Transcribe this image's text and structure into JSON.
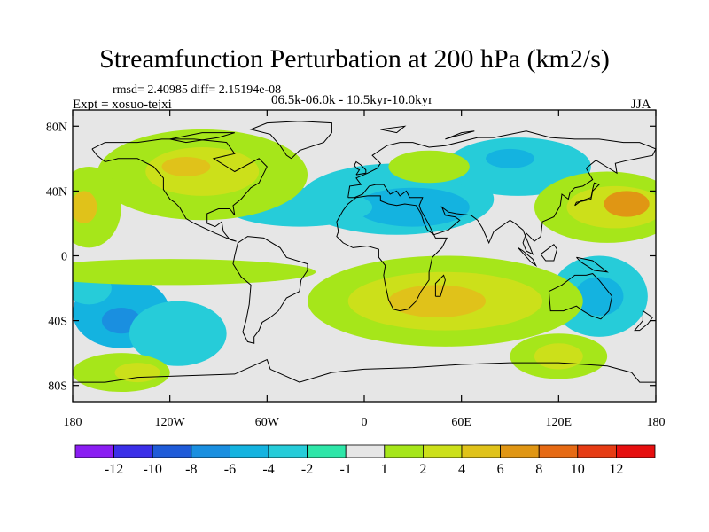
{
  "title": "Streamfunction Perturbation at 200 hPa (km2/s)",
  "stats": "rmsd= 2.40985 diff= 2.15194e-08",
  "subtitle": "06.5k-06.0k - 10.5kyr-10.0kyr",
  "expt": "Expt = xosuo-tejxi",
  "season": "JJA",
  "map": {
    "lon_range": [
      -180,
      180
    ],
    "lat_range": [
      -90,
      90
    ],
    "lat_ticks": [
      {
        "value": 80,
        "label": "80N"
      },
      {
        "value": 40,
        "label": "40N"
      },
      {
        "value": 0,
        "label": "0"
      },
      {
        "value": -40,
        "label": "40S"
      },
      {
        "value": -80,
        "label": "80S"
      }
    ],
    "lon_ticks": [
      {
        "value": -180,
        "label": "180"
      },
      {
        "value": -120,
        "label": "120W"
      },
      {
        "value": -60,
        "label": "60W"
      },
      {
        "value": 0,
        "label": "0"
      },
      {
        "value": 60,
        "label": "60E"
      },
      {
        "value": 120,
        "label": "120E"
      },
      {
        "value": 180,
        "label": "180"
      }
    ],
    "background_color": "#e6e6e6",
    "coast_color": "#000000"
  },
  "colorbar": {
    "labels": [
      "-12",
      "-10",
      "-8",
      "-6",
      "-4",
      "-2",
      "-1",
      "1",
      "2",
      "4",
      "6",
      "8",
      "10",
      "12"
    ],
    "colors": [
      "#8a1df2",
      "#3b2fe8",
      "#1f5bd8",
      "#1a8fe0",
      "#14b3e0",
      "#26ccd9",
      "#2ee6a8",
      "#e6e6e6",
      "#a6e61a",
      "#cce01a",
      "#e0c21a",
      "#e09614",
      "#e66a14",
      "#e63c14",
      "#e60f0f"
    ]
  },
  "contours": [
    {
      "level": "-4",
      "color": "#14b3e0",
      "cx": -150,
      "cy": -35,
      "rx": 30,
      "ry": 22
    },
    {
      "level": "-6",
      "color": "#1a8fe0",
      "cx": -150,
      "cy": -40,
      "rx": 12,
      "ry": 8
    },
    {
      "level": "-2",
      "color": "#26ccd9",
      "cx": -115,
      "cy": -48,
      "rx": 30,
      "ry": 20
    },
    {
      "level": "-2",
      "color": "#26ccd9",
      "cx": -170,
      "cy": -20,
      "rx": 14,
      "ry": 10
    },
    {
      "level": "-2",
      "color": "#26ccd9",
      "cx": 20,
      "cy": 35,
      "rx": 60,
      "ry": 22
    },
    {
      "level": "-4",
      "color": "#14b3e0",
      "cx": 30,
      "cy": 30,
      "rx": 35,
      "ry": 12
    },
    {
      "level": "-2",
      "color": "#26ccd9",
      "cx": -40,
      "cy": 30,
      "rx": 45,
      "ry": 12
    },
    {
      "level": "-2",
      "color": "#26ccd9",
      "cx": 95,
      "cy": 55,
      "rx": 45,
      "ry": 18
    },
    {
      "level": "-4",
      "color": "#14b3e0",
      "cx": 90,
      "cy": 60,
      "rx": 15,
      "ry": 6
    },
    {
      "level": "-2",
      "color": "#26ccd9",
      "cx": 145,
      "cy": -25,
      "rx": 30,
      "ry": 25
    },
    {
      "level": "-4",
      "color": "#14b3e0",
      "cx": 145,
      "cy": -25,
      "rx": 15,
      "ry": 12
    },
    {
      "level": "2",
      "color": "#a6e61a",
      "cx": -100,
      "cy": 50,
      "rx": 65,
      "ry": 28
    },
    {
      "level": "4",
      "color": "#cce01a",
      "cx": -100,
      "cy": 52,
      "rx": 35,
      "ry": 15
    },
    {
      "level": "6",
      "color": "#e0c21a",
      "cx": -110,
      "cy": 55,
      "rx": 15,
      "ry": 6
    },
    {
      "level": "2",
      "color": "#a6e61a",
      "cx": -170,
      "cy": 30,
      "rx": 20,
      "ry": 25
    },
    {
      "level": "6",
      "color": "#e0c21a",
      "cx": -173,
      "cy": 30,
      "rx": 8,
      "ry": 10
    },
    {
      "level": "2",
      "color": "#a6e61a",
      "cx": 50,
      "cy": -28,
      "rx": 85,
      "ry": 28
    },
    {
      "level": "4",
      "color": "#cce01a",
      "cx": 50,
      "cy": -28,
      "rx": 60,
      "ry": 18
    },
    {
      "level": "6",
      "color": "#e0c21a",
      "cx": 45,
      "cy": -28,
      "rx": 30,
      "ry": 10
    },
    {
      "level": "2",
      "color": "#a6e61a",
      "cx": 150,
      "cy": 30,
      "rx": 45,
      "ry": 22
    },
    {
      "level": "4",
      "color": "#cce01a",
      "cx": 155,
      "cy": 30,
      "rx": 30,
      "ry": 13
    },
    {
      "level": "6",
      "color": "#e09614",
      "cx": 162,
      "cy": 32,
      "rx": 14,
      "ry": 8
    },
    {
      "level": "2",
      "color": "#a6e61a",
      "cx": 120,
      "cy": -62,
      "rx": 30,
      "ry": 14
    },
    {
      "level": "4",
      "color": "#cce01a",
      "cx": 120,
      "cy": -62,
      "rx": 15,
      "ry": 8
    },
    {
      "level": "2",
      "color": "#a6e61a",
      "cx": -120,
      "cy": -10,
      "rx": 90,
      "ry": 8
    },
    {
      "level": "2",
      "color": "#a6e61a",
      "cx": -150,
      "cy": -72,
      "rx": 30,
      "ry": 12
    },
    {
      "level": "4",
      "color": "#cce01a",
      "cx": -140,
      "cy": -72,
      "rx": 14,
      "ry": 6
    },
    {
      "level": "2",
      "color": "#a6e61a",
      "cx": 40,
      "cy": 55,
      "rx": 25,
      "ry": 10
    }
  ]
}
